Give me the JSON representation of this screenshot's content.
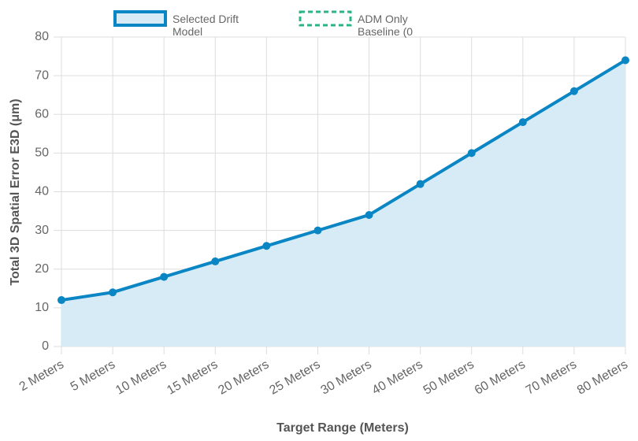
{
  "chart_data": {
    "type": "line",
    "categories": [
      "2 Meters",
      "5 Meters",
      "10 Meters",
      "15 Meters",
      "20 Meters",
      "25 Meters",
      "30 Meters",
      "40 Meters",
      "50 Meters",
      "60 Meters",
      "70 Meters",
      "80 Meters"
    ],
    "series": [
      {
        "name": "Selected Drift Model",
        "color": "#0a86c4",
        "fill": "#d7ebf6",
        "values": [
          12,
          14,
          18,
          22,
          26,
          30,
          34,
          42,
          50,
          58,
          66,
          74
        ]
      },
      {
        "name": "ADM Only Baseline (0",
        "color": "#2bb486",
        "dashed": true,
        "values": [
          null,
          null,
          null,
          null,
          null,
          null,
          null,
          null,
          null,
          null,
          null,
          null
        ]
      }
    ],
    "ylim": [
      0,
      80
    ],
    "yticks": [
      0,
      10,
      20,
      30,
      40,
      50,
      60,
      70,
      80
    ],
    "x_label": "Target Range (Meters)",
    "y_label": "Total 3D Spatial Error E3D (μm)",
    "grid": true,
    "legend": "top"
  }
}
